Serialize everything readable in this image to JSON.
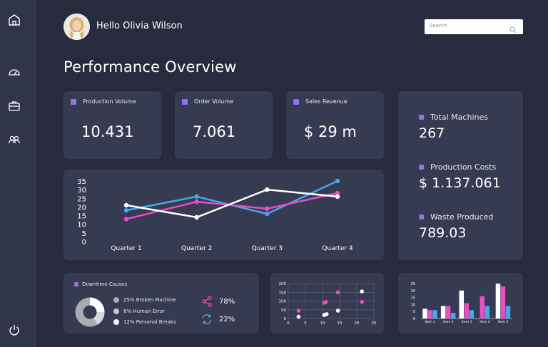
{
  "user": {
    "greeting": "Hello Olivia Wilson"
  },
  "search": {
    "placeholder": "Search"
  },
  "page": {
    "title": "Performance Overview"
  },
  "kpis": [
    {
      "label": "Production Volume",
      "value": "10.431"
    },
    {
      "label": "Order Volume",
      "value": "7.061"
    },
    {
      "label": "Sales Revenue",
      "value": "$ 29 m"
    }
  ],
  "summary": [
    {
      "label": "Total Machines",
      "value": "267"
    },
    {
      "label": "Production Costs",
      "value": "$ 1.137.061"
    },
    {
      "label": "Waste Produced",
      "value": "789.03"
    }
  ],
  "downtime": {
    "title": "Downtime Causes",
    "legend": [
      {
        "label": "25% Broken Machine",
        "color": "#a8aab4"
      },
      {
        "label": "8% Human Error",
        "color": "#c7c9d1"
      },
      {
        "label": "12% Personal Breaks",
        "color": "#ffffff"
      }
    ],
    "stats": [
      {
        "icon": "share-icon",
        "value": "78%",
        "color": "#e84fc0"
      },
      {
        "icon": "refresh-icon",
        "value": "22%",
        "color": "#4fb3f0"
      }
    ]
  },
  "colors": {
    "blue": "#43a8ec",
    "pink": "#e84fc0",
    "white": "#ffffff",
    "card": "#363b52",
    "background": "#272b3d"
  },
  "chart_data": [
    {
      "type": "line",
      "categories": [
        "Quarter 1",
        "Quarter 2",
        "Quarter 3",
        "Quarter 4"
      ],
      "y_ticks": [
        "35",
        "30",
        "25",
        "20",
        "15",
        "10",
        "5",
        "0"
      ],
      "ylim": [
        0,
        35
      ],
      "series": [
        {
          "color": "#43a8ec",
          "values": [
            18,
            26,
            16,
            35
          ]
        },
        {
          "color": "#e84fc0",
          "values": [
            13,
            23,
            19,
            28
          ]
        },
        {
          "color": "#ffffff",
          "values": [
            21,
            14,
            30,
            26
          ]
        }
      ]
    },
    {
      "type": "scatter",
      "x_ticks": [
        "0",
        "5",
        "10",
        "15",
        "20",
        "25"
      ],
      "y_ticks": [
        "200",
        "150",
        "100",
        "50",
        "0"
      ],
      "xlim": [
        0,
        25
      ],
      "ylim": [
        0,
        200
      ],
      "grid": true,
      "series": [
        {
          "color": "#e84fc0",
          "points": [
            [
              3,
              45
            ],
            [
              10.5,
              90
            ],
            [
              11,
              95
            ],
            [
              14.5,
              150
            ],
            [
              21.5,
              95
            ]
          ]
        },
        {
          "color": "#ffffff",
          "points": [
            [
              3,
              10
            ],
            [
              10.5,
              20
            ],
            [
              11.2,
              25
            ],
            [
              14.5,
              45
            ],
            [
              21.5,
              155
            ]
          ]
        }
      ]
    },
    {
      "type": "bar",
      "categories": [
        "Item 1",
        "Item 2",
        "Item 3",
        "Item 4",
        "Item 5"
      ],
      "y_ticks": [
        "25",
        "20",
        "15",
        "10",
        "5",
        "0"
      ],
      "ylim": [
        0,
        25
      ],
      "series": [
        {
          "color": "#e84fc0",
          "values": [
            6,
            9,
            11,
            16,
            23
          ]
        },
        {
          "color": "#43a8ec",
          "values": [
            6,
            4,
            6,
            9,
            9
          ]
        },
        {
          "color": "#ffffff",
          "values": [
            7,
            9,
            20,
            0,
            25
          ]
        }
      ]
    }
  ]
}
